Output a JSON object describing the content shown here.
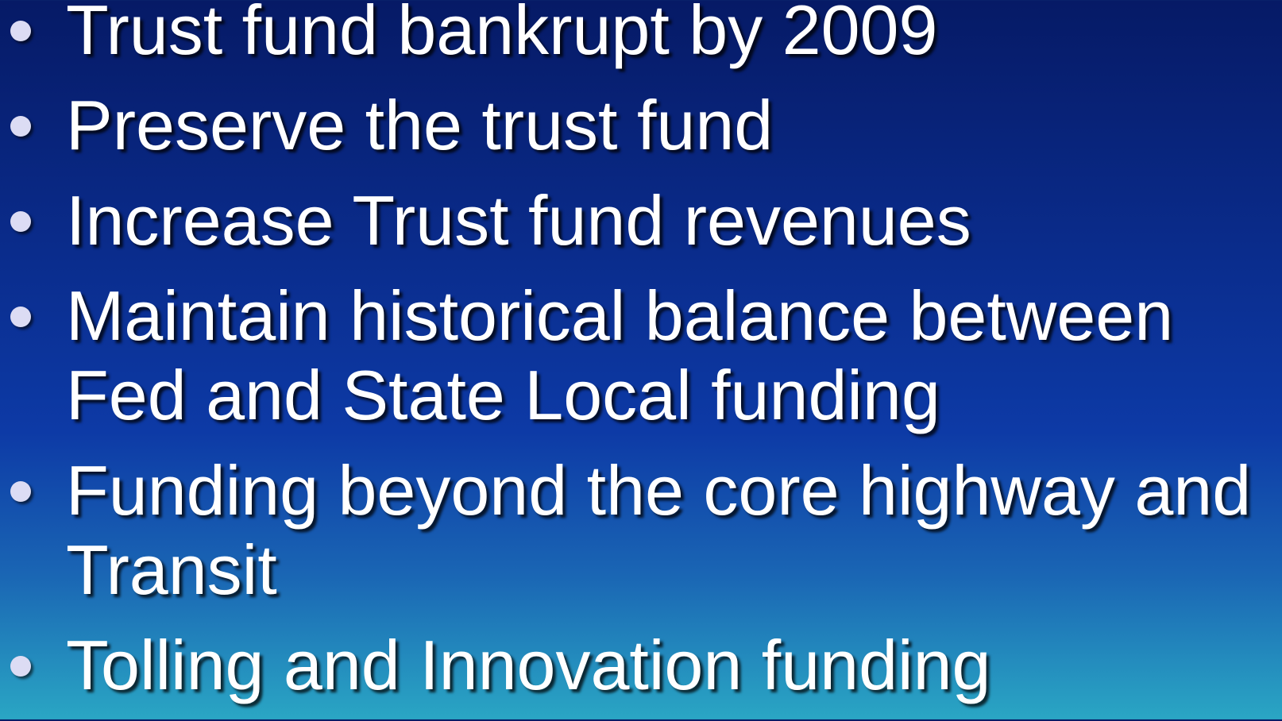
{
  "bullets": [
    "Trust fund bankrupt by 2009",
    "Preserve the trust fund",
    "Increase Trust fund revenues",
    "Maintain historical balance between Fed and State Local funding",
    "Funding beyond the core highway and Transit",
    "Tolling and Innovation funding"
  ]
}
